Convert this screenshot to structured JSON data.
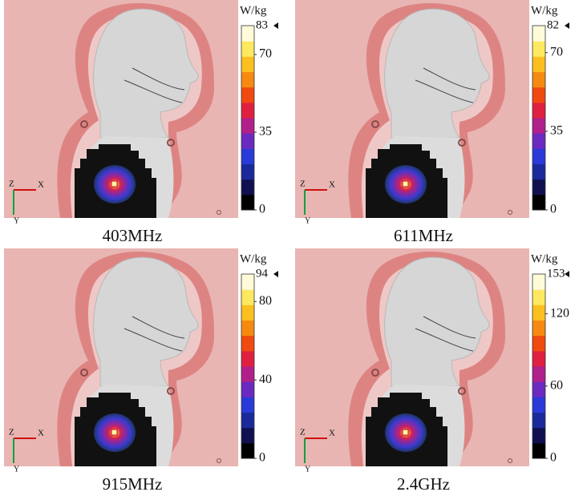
{
  "panels": [
    {
      "caption": "403MHz",
      "colorbar": {
        "unit": "W/kg",
        "max": 83,
        "ticks": [
          70,
          35,
          0
        ]
      },
      "axes": {
        "z": "Z",
        "x": "X",
        "y": "Y"
      }
    },
    {
      "caption": "611MHz",
      "colorbar": {
        "unit": "W/kg",
        "max": 82,
        "ticks": [
          70,
          35,
          0
        ]
      },
      "axes": {
        "z": "Z",
        "x": "X",
        "y": "Y"
      }
    },
    {
      "caption": "915MHz",
      "colorbar": {
        "unit": "W/kg",
        "max": 94,
        "ticks": [
          80,
          40,
          0
        ]
      },
      "axes": {
        "z": "Z",
        "x": "X",
        "y": "Y"
      }
    },
    {
      "caption": "2.4GHz",
      "colorbar": {
        "unit": "W/kg",
        "max": 153,
        "ticks": [
          120,
          60,
          0
        ]
      },
      "axes": {
        "z": "Z",
        "x": "X",
        "y": "Y"
      }
    }
  ]
}
